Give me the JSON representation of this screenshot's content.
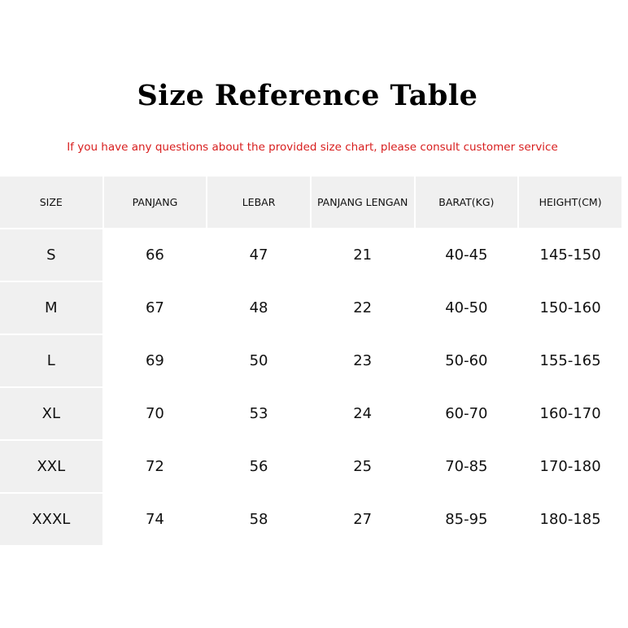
{
  "title": "Size Reference Table",
  "subtitle": "If you have any questions about the provided size chart, please consult customer service",
  "table": {
    "headers": [
      "SIZE",
      "PANJANG",
      "LEBAR",
      "PANJANG LENGAN",
      "BARAT(KG)",
      "HEIGHT(CM)"
    ],
    "rows": [
      [
        "S",
        "66",
        "47",
        "21",
        "40-45",
        "145-150"
      ],
      [
        "M",
        "67",
        "48",
        "22",
        "40-50",
        "150-160"
      ],
      [
        "L",
        "69",
        "50",
        "23",
        "50-60",
        "155-165"
      ],
      [
        "XL",
        "70",
        "53",
        "24",
        "60-70",
        "160-170"
      ],
      [
        "XXL",
        "72",
        "56",
        "25",
        "70-85",
        "170-180"
      ],
      [
        "XXXL",
        "74",
        "58",
        "27",
        "85-95",
        "180-185"
      ]
    ]
  },
  "colors": {
    "subtitle": "#d81e1e",
    "cell_shade": "#f0f0f0"
  }
}
